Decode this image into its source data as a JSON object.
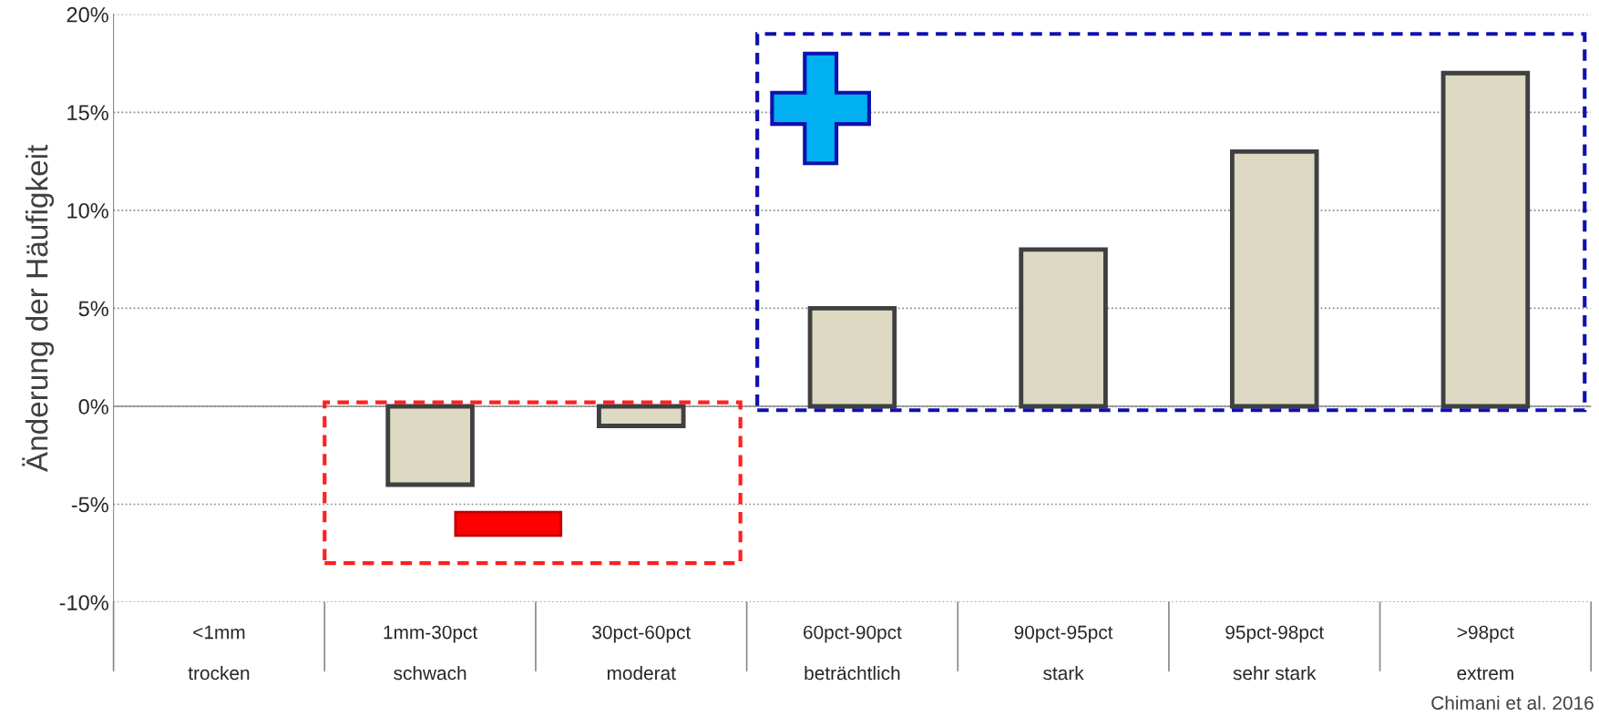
{
  "chart_data": {
    "type": "bar",
    "ylabel": "Änderung der Häufigkeit",
    "categories": [
      "<1mm\n\ntrocken",
      "1mm-30pct\n\nschwach",
      "30pct-60pct\n\nmoderat",
      "60pct-90pct\n\nbeträchtlich",
      "90pct-95pct\n\nstark",
      "95pct-98pct\n\nsehr stark",
      ">98pct\n\nextrem"
    ],
    "series": [
      {
        "color": "#ddd9c3",
        "values": [
          null,
          -4,
          -1,
          5,
          8,
          13,
          17
        ]
      }
    ],
    "ylim": [
      -10,
      20
    ],
    "yticks": [
      {
        "value": -10,
        "label": "-10%"
      },
      {
        "value": -5,
        "label": "-5%"
      },
      {
        "value": 0,
        "label": "0%"
      },
      {
        "value": 5,
        "label": "5%"
      },
      {
        "value": 10,
        "label": "10%"
      },
      {
        "value": 15,
        "label": "15%"
      },
      {
        "value": 20,
        "label": "20%"
      }
    ],
    "grid": "y",
    "legend": false,
    "annotations": [
      "Chimani et al. 2016"
    ]
  }
}
